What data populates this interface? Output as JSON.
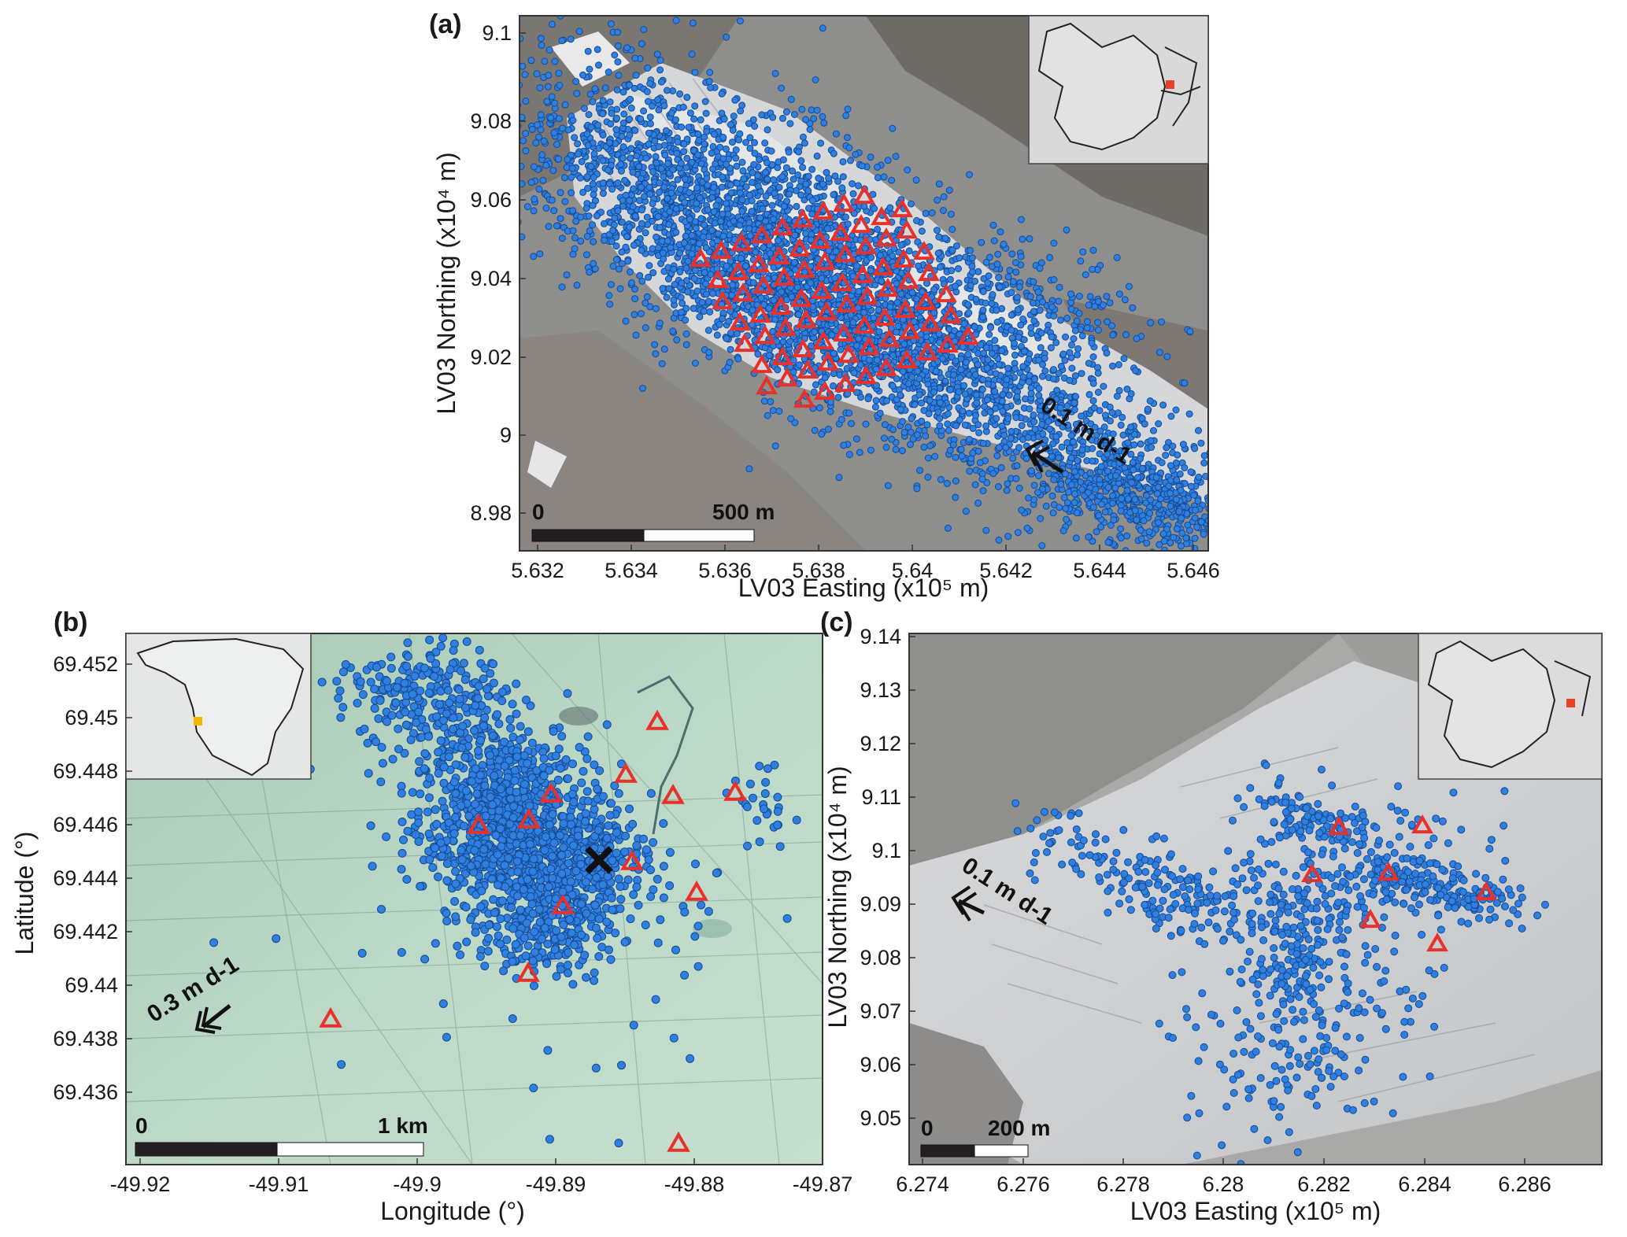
{
  "panels": [
    {
      "id": "a",
      "label": "(a)",
      "xlabel": "LV03 Easting (x10⁵ m)",
      "ylabel": "LV03 Northing (x10⁴ m)",
      "xticks": [
        "5.632",
        "5.634",
        "5.636",
        "5.638",
        "5.64",
        "5.642",
        "5.644",
        "5.646"
      ],
      "yticks": [
        "9.1",
        "9.08",
        "9.06",
        "9.04",
        "9.02",
        "9",
        "8.98"
      ],
      "scalebar": {
        "start": "0",
        "end": "500 m"
      },
      "velocity": "0.1 m d-1",
      "inset": "France location map, site marked in the western Alps",
      "colors": {
        "background": "#8e8f8d",
        "ice": "#d6d7d9",
        "events": "#2f7fe0",
        "stations": "#e8312a",
        "site_marker": "#e8412c"
      }
    },
    {
      "id": "b",
      "label": "(b)",
      "xlabel": "Longitude (°)",
      "ylabel": "Latitude (°)",
      "xticks": [
        "-49.92",
        "-49.91",
        "-49.9",
        "-49.89",
        "-49.88",
        "-49.87"
      ],
      "yticks": [
        "69.452",
        "69.45",
        "69.448",
        "69.446",
        "69.444",
        "69.442",
        "69.44",
        "69.438",
        "69.436"
      ],
      "scalebar": {
        "start": "0",
        "end": "1 km"
      },
      "velocity": "0.3 m d-1",
      "inset": "Greenland location map, site marked on the western margin",
      "colors": {
        "background": "#b8d6c4",
        "events": "#2f7fe0",
        "stations": "#e8312a",
        "site_marker": "#f5b800",
        "cross": "#111111"
      }
    },
    {
      "id": "c",
      "label": "(c)",
      "xlabel": "LV03 Easting (x10⁵ m)",
      "ylabel": "LV03 Northing (x10⁴ m)",
      "xticks": [
        "6.274",
        "6.276",
        "6.278",
        "6.28",
        "6.282",
        "6.284",
        "6.286"
      ],
      "yticks": [
        "9.14",
        "9.13",
        "9.12",
        "9.11",
        "9.1",
        "9.09",
        "9.08",
        "9.07",
        "9.06",
        "9.05"
      ],
      "scalebar": {
        "start": "0",
        "end": "200 m"
      },
      "velocity": "0.1 m d-1",
      "inset": "France location map, site marked in the western Alps",
      "colors": {
        "background": "#a9a9a7",
        "events": "#2f7fe0",
        "stations": "#e8312a",
        "site_marker": "#e8412c"
      }
    }
  ]
}
